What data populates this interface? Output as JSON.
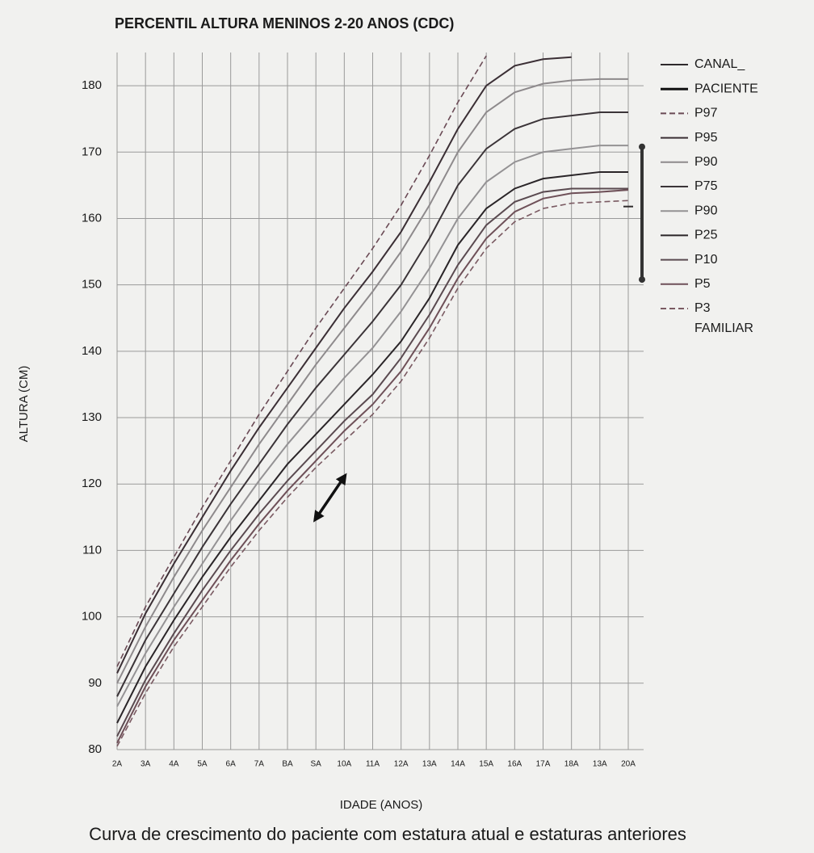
{
  "chart_data": {
    "type": "line",
    "title": "PERCENTIL ALTURA MENINOS 2-20 ANOS (CDC)",
    "x_label": "IDADE (ANOS)",
    "y_label": "ALTURA (CM)",
    "caption": "Curva de crescimento do paciente com estatura atual e estaturas anteriores",
    "categories": [
      "2A",
      "3A",
      "4A",
      "5A",
      "6A",
      "7A",
      "BA",
      "SA",
      "10A",
      "11A",
      "12A",
      "13A",
      "14A",
      "15A",
      "16A",
      "17A",
      "18A",
      "13A",
      "20A"
    ],
    "ylim": [
      80,
      185
    ],
    "yticks": [
      80,
      90,
      100,
      110,
      120,
      130,
      140,
      150,
      160,
      170,
      180
    ],
    "grid": true,
    "legend": "right",
    "series": [
      {
        "name": "CANAL_",
        "color": "#2e2a2c",
        "style": "solid",
        "values": [
          null,
          null,
          null,
          null,
          null,
          null,
          null,
          null,
          null,
          null,
          null,
          null,
          null,
          null,
          null,
          null,
          null,
          null,
          161.8
        ]
      },
      {
        "name": "PACIENTE",
        "color": "#111111",
        "style": "arrow",
        "values": [
          null,
          null,
          null,
          null,
          null,
          null,
          null,
          114.8,
          121.1,
          null,
          null,
          null,
          null,
          null,
          null,
          null,
          null,
          null,
          null
        ]
      },
      {
        "name": "P97",
        "color": "#6a4a55",
        "style": "dashed",
        "values": [
          92.5,
          101.5,
          109,
          116.5,
          123.5,
          130.5,
          137,
          143.5,
          149.5,
          155.5,
          162,
          169.5,
          177.5,
          184.5,
          null,
          null,
          null,
          null,
          null
        ]
      },
      {
        "name": "P95",
        "color": "#3b2f35",
        "style": "solid",
        "values": [
          91.5,
          100.5,
          108,
          115,
          122,
          128.5,
          134.5,
          140.5,
          146.5,
          152,
          158,
          165.5,
          173.5,
          180,
          183,
          184,
          184.3,
          null,
          null
        ]
      },
      {
        "name": "P90",
        "color": "#8e8a8c",
        "style": "solid",
        "values": [
          90,
          98.5,
          106,
          113,
          119.5,
          126,
          132,
          138,
          143.5,
          149,
          155,
          162,
          170,
          176,
          179,
          180.3,
          180.8,
          181,
          181
        ]
      },
      {
        "name": "P75",
        "color": "#3b3438",
        "style": "solid",
        "values": [
          88,
          96.5,
          103.5,
          110.5,
          117,
          123,
          129,
          134.5,
          139.5,
          144.5,
          150,
          157,
          165,
          170.5,
          173.5,
          175,
          175.5,
          176,
          176
        ]
      },
      {
        "name": "P90",
        "color": "#949294",
        "style": "solid",
        "values": [
          86.5,
          94.5,
          101.5,
          108,
          114.5,
          120.5,
          126,
          131,
          136,
          140.5,
          146,
          152.5,
          160,
          165.5,
          168.5,
          170,
          170.5,
          171,
          171
        ]
      },
      {
        "name": "P25",
        "color": "#2a2528",
        "style": "solid",
        "values": [
          84,
          92.5,
          99.5,
          106,
          112,
          117.5,
          123,
          127.5,
          132,
          136.5,
          141.5,
          148,
          156,
          161.5,
          164.5,
          166,
          166.5,
          167,
          167
        ]
      },
      {
        "name": "P10",
        "color": "#5a4a50",
        "style": "solid",
        "values": [
          82,
          90.5,
          97.5,
          104,
          110,
          115.5,
          120.5,
          125,
          129.5,
          133.5,
          139,
          145.5,
          153,
          159,
          162.5,
          164,
          164.5,
          164.5,
          164.5
        ]
      },
      {
        "name": "P5",
        "color": "#6e5058",
        "style": "solid",
        "values": [
          81,
          89.5,
          96.5,
          102.5,
          108.5,
          114,
          119,
          123.5,
          128,
          132,
          137,
          143.5,
          151,
          157,
          161,
          163,
          163.8,
          164,
          164.3
        ]
      },
      {
        "name": "P3",
        "color": "#7a5a62",
        "style": "dashed",
        "values": [
          80.5,
          88.5,
          95.5,
          101.5,
          107.5,
          113,
          118,
          122.5,
          126.5,
          130.5,
          135.5,
          142,
          149.5,
          155.5,
          159.5,
          161.5,
          162.3,
          162.5,
          162.7
        ]
      }
    ],
    "familiar": {
      "label": "FAMILIAR",
      "color": "#333333",
      "range": [
        150.8,
        170.8
      ]
    }
  }
}
